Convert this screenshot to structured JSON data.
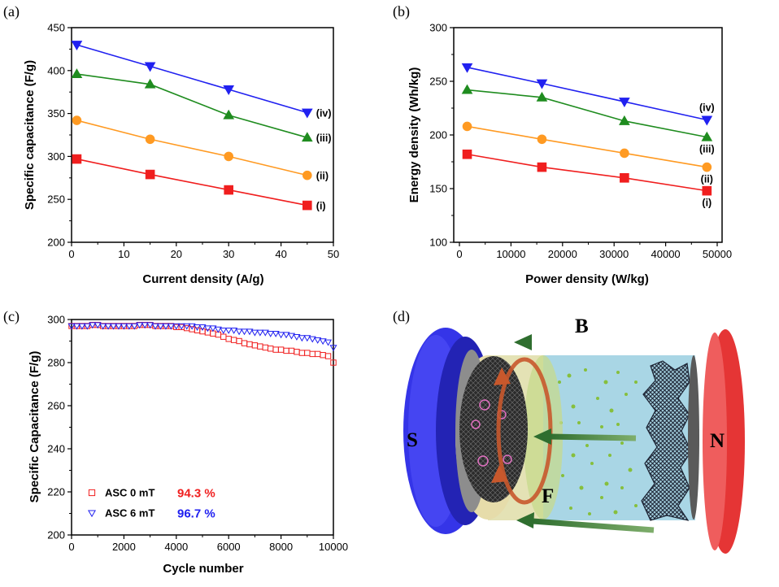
{
  "chart_data": [
    {
      "panel_label": "(a)",
      "type": "line",
      "xlabel": "Current density (A/g)",
      "ylabel": "Specific capacitance (F/g)",
      "xlim": [
        0,
        50
      ],
      "ylim": [
        200,
        450
      ],
      "xticks": [
        0,
        10,
        20,
        30,
        40,
        50
      ],
      "yticks": [
        200,
        250,
        300,
        350,
        400,
        450
      ],
      "grid": false,
      "x": [
        1,
        15,
        30,
        45
      ],
      "series": [
        {
          "name": "(iv)",
          "marker": "triangle-down",
          "color": "#2121f0",
          "values": [
            430,
            405,
            378,
            351
          ]
        },
        {
          "name": "(iii)",
          "marker": "triangle-up",
          "color": "#1f8c1f",
          "values": [
            396,
            384,
            348,
            322
          ]
        },
        {
          "name": "(ii)",
          "marker": "circle",
          "color": "#ff9a22",
          "values": [
            342,
            320,
            300,
            278
          ]
        },
        {
          "name": "(i)",
          "marker": "square",
          "color": "#f01e1e",
          "values": [
            297,
            279,
            261,
            243
          ]
        }
      ]
    },
    {
      "panel_label": "(b)",
      "type": "line",
      "xlabel": "Power density (W/kg)",
      "ylabel": "Energy density (Wh/kg)",
      "xlim": [
        0,
        50000
      ],
      "ylim": [
        100,
        300
      ],
      "xticks": [
        0,
        10000,
        20000,
        30000,
        40000,
        50000
      ],
      "yticks": [
        100,
        150,
        200,
        250,
        300
      ],
      "grid": false,
      "x": [
        1500,
        16000,
        32000,
        48000
      ],
      "series": [
        {
          "name": "(iv)",
          "marker": "triangle-down",
          "color": "#2121f0",
          "values": [
            263,
            248,
            231,
            214
          ]
        },
        {
          "name": "(iii)",
          "marker": "triangle-up",
          "color": "#1f8c1f",
          "values": [
            242,
            235,
            213,
            198
          ]
        },
        {
          "name": "(ii)",
          "marker": "circle",
          "color": "#ff9a22",
          "values": [
            208,
            196,
            183,
            170
          ]
        },
        {
          "name": "(i)",
          "marker": "square",
          "color": "#f01e1e",
          "values": [
            182,
            170,
            160,
            148
          ]
        }
      ]
    },
    {
      "panel_label": "(c)",
      "type": "scatter",
      "xlabel": "Cycle number",
      "ylabel": "Specific Capacitance (F/g)",
      "xlim": [
        0,
        10000
      ],
      "ylim": [
        200,
        300
      ],
      "xticks": [
        0,
        2000,
        4000,
        6000,
        8000,
        10000
      ],
      "yticks": [
        200,
        220,
        240,
        260,
        280,
        300
      ],
      "grid": false,
      "legend": "bottom-left",
      "x": [
        0,
        200,
        400,
        600,
        800,
        1000,
        1200,
        1400,
        1600,
        1800,
        2000,
        2200,
        2400,
        2600,
        2800,
        3000,
        3200,
        3400,
        3600,
        3800,
        4000,
        4200,
        4400,
        4600,
        4800,
        5000,
        5200,
        5400,
        5600,
        5800,
        6000,
        6200,
        6400,
        6600,
        6800,
        7000,
        7200,
        7400,
        7600,
        7800,
        8000,
        8200,
        8400,
        8600,
        8800,
        9000,
        9200,
        9400,
        9600,
        9800,
        10000
      ],
      "series": [
        {
          "name": "ASC 0 mT",
          "retention": "94.3 %",
          "marker": "square-open",
          "color": "#f02020",
          "values": [
            297,
            297,
            297,
            297,
            297.5,
            297.5,
            297,
            297,
            297,
            297,
            297,
            297,
            297,
            297.5,
            297.5,
            297.5,
            297,
            297,
            297,
            297,
            296.5,
            296.5,
            296,
            295.5,
            295,
            294.5,
            294,
            293.5,
            293,
            292,
            291,
            290.5,
            290,
            289,
            288.5,
            288,
            287.5,
            287,
            286.5,
            286,
            286,
            285.5,
            285.5,
            285,
            284.5,
            284.5,
            284,
            284,
            283.5,
            283,
            280
          ]
        },
        {
          "name": "ASC 6 mT",
          "retention": "96.7 %",
          "marker": "triangle-down-open",
          "color": "#2020f0",
          "values": [
            297,
            297,
            297,
            297,
            297.5,
            297.5,
            297,
            297,
            297,
            297,
            297,
            297,
            297,
            297.5,
            297.5,
            297.5,
            297,
            297,
            297,
            297,
            297,
            297,
            297,
            297,
            296.5,
            296.5,
            296,
            296,
            295.5,
            295,
            295,
            295,
            294.5,
            294.5,
            294.5,
            294,
            294,
            294,
            293.5,
            293.5,
            293,
            293,
            292.5,
            292,
            291.5,
            291.5,
            291,
            290.5,
            290,
            289.5,
            287
          ]
        }
      ]
    }
  ],
  "diagram": {
    "panel_label": "(d)",
    "field_label": "B",
    "south_pole_label": "S",
    "north_pole_label": "N",
    "force_label": "F",
    "colors": {
      "south_magnet": "#3535e8",
      "north_magnet": "#e53535",
      "field_arrows": "#2f6e2f",
      "force_ring": "#c8582c",
      "electrolyte": "#a9d6e5"
    }
  }
}
